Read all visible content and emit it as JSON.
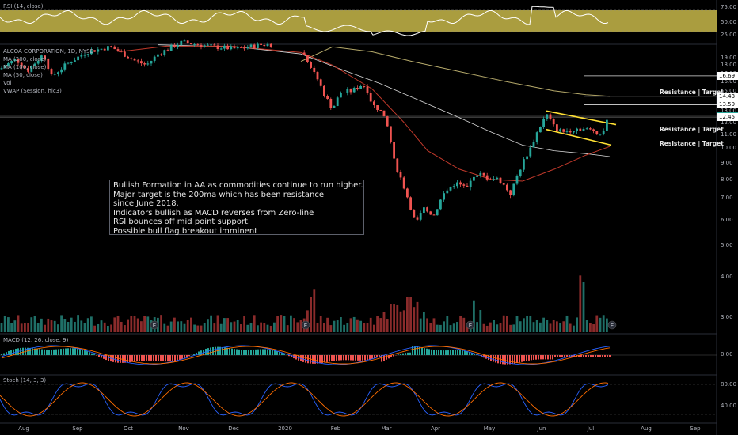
{
  "chart_data": {
    "type": "candlestick",
    "symbol_label": "ALCOA CORPORATION, 1D, NYSE",
    "indicator_labels": [
      "MA (200, close)",
      "MA (100, close)",
      "MA (50, close)",
      "Vol",
      "VWAP (Session, hlc3)"
    ],
    "price_axis": {
      "ticks": [
        "19.00",
        "18.00",
        "17.00",
        "16.00",
        "15.00",
        "14.00",
        "13.00",
        "12.00",
        "11.00",
        "10.00",
        "9.00",
        "8.00",
        "7.00",
        "6.00",
        "5.00",
        "4.00",
        "3.00"
      ],
      "range": [
        2.7,
        21.0
      ]
    },
    "x_axis_labels": [
      "Aug",
      "Sep",
      "Oct",
      "Nov",
      "Dec",
      "2020",
      "Feb",
      "Mar",
      "Apr",
      "May",
      "Jun",
      "Jul",
      "Aug",
      "Sep"
    ],
    "price_tags": [
      {
        "value": "16.69",
        "color": "#ffffff",
        "text_color": "#000000"
      },
      {
        "value": "14.43",
        "color": "#ffffff",
        "text_color": "#000000"
      },
      {
        "value": "13.59",
        "color": "#ffffff",
        "text_color": "#000000"
      },
      {
        "value": "12.61",
        "color": "#26a69a",
        "text_color": "#ffffff"
      },
      {
        "value": "12.45",
        "color": "#ffffff",
        "text_color": "#000000"
      }
    ],
    "resistance_labels": [
      "Resistance | Target",
      "Resistance | Target",
      "Resistance | Target"
    ],
    "annotation": [
      "Bullish Formation in AA as commodities continue to run higher.",
      "Major target is the 200ma which has been resistance",
      "since June 2018.",
      "Indicators bullish as MACD reverses from Zero-line",
      "RSI bounces off mid point support.",
      "Possible bull flag breakout imminent"
    ],
    "earnings_marker": "E",
    "rsi": {
      "label": "RSI (14, close)",
      "ticks": [
        "75.00",
        "50.00",
        "25.00"
      ]
    },
    "macd": {
      "label": "MACD (12, 26, close, 9)",
      "ticks": [
        "0.00"
      ]
    },
    "stoch": {
      "label": "Stoch (14, 3, 3)",
      "ticks": [
        "80.00",
        "40.00"
      ]
    },
    "colors": {
      "up": "#26a69a",
      "down": "#ef5350",
      "band": "#c8b94a",
      "flag": "#ffe033",
      "ma200": "#b5a96a",
      "ma100": "#d9d9d9",
      "ma50": "#c0392b"
    }
  }
}
